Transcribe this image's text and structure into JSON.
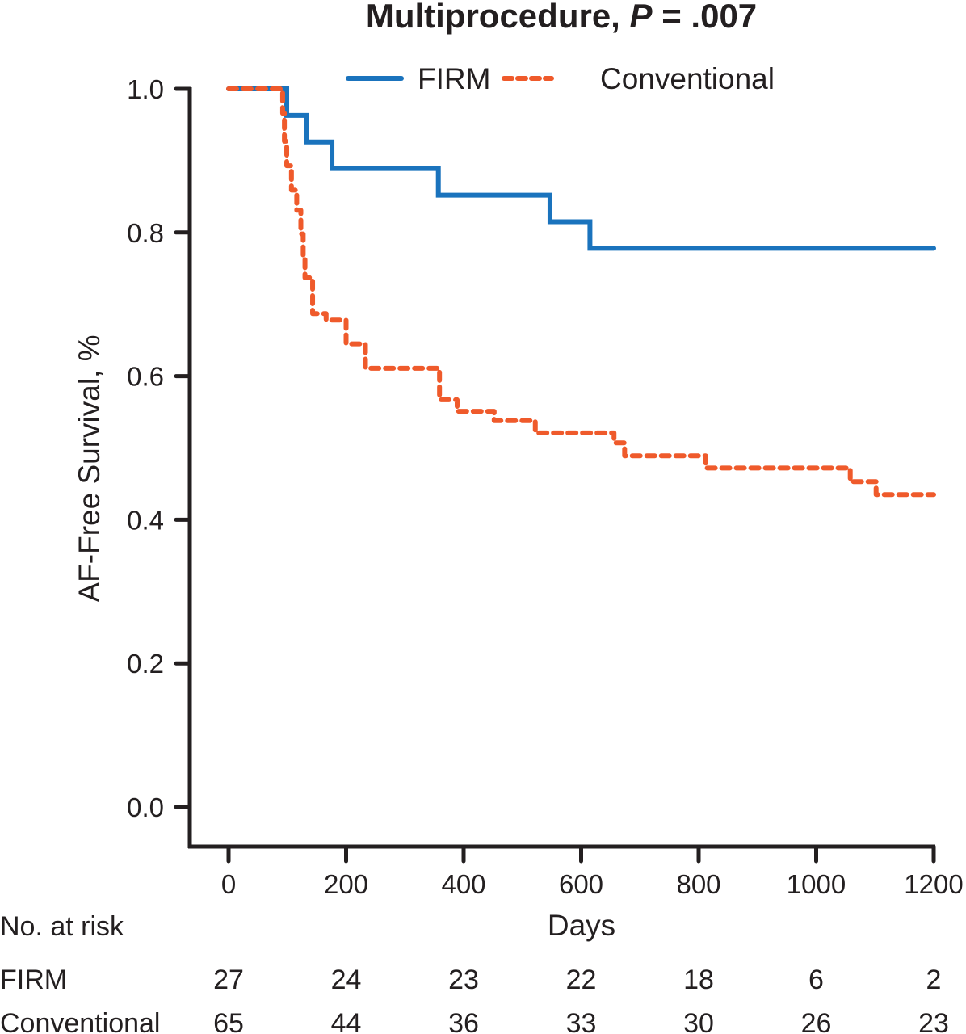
{
  "chart_data": {
    "type": "line",
    "subtype": "kaplan-meier-step",
    "title_main": "Multiprocedure, ",
    "title_p_symbol": "P",
    "title_p_value": " = .007",
    "xlabel": "Days",
    "ylabel": "AF-Free Survival, %",
    "xlim": [
      0,
      1200
    ],
    "ylim": [
      0.0,
      1.0
    ],
    "x_ticks": [
      0,
      200,
      400,
      600,
      800,
      1000,
      1200
    ],
    "x_tick_labels": [
      "0",
      "200",
      "400",
      "600",
      "800",
      "1000",
      "1200"
    ],
    "y_ticks": [
      0.0,
      0.2,
      0.4,
      0.6,
      0.8,
      1.0
    ],
    "y_tick_labels": [
      "0.0",
      "0.2",
      "0.4",
      "0.6",
      "0.8",
      "1.0"
    ],
    "grid": false,
    "legend_position": "top-center",
    "series": [
      {
        "name": "FIRM",
        "color": "#1a73bd",
        "style": "solid",
        "steps": [
          [
            0,
            1.0
          ],
          [
            99,
            0.963
          ],
          [
            133,
            0.926
          ],
          [
            176,
            0.889
          ],
          [
            357,
            0.852
          ],
          [
            547,
            0.815
          ],
          [
            615,
            0.778
          ]
        ],
        "end_x": 1200
      },
      {
        "name": "Conventional",
        "color": "#ef5a2b",
        "style": "dashed",
        "steps": [
          [
            0,
            1.0
          ],
          [
            92,
            0.966
          ],
          [
            95,
            0.927
          ],
          [
            99,
            0.893
          ],
          [
            107,
            0.859
          ],
          [
            116,
            0.831
          ],
          [
            123,
            0.798
          ],
          [
            127,
            0.764
          ],
          [
            130,
            0.737
          ],
          [
            143,
            0.687
          ],
          [
            166,
            0.678
          ],
          [
            200,
            0.645
          ],
          [
            233,
            0.611
          ],
          [
            359,
            0.567
          ],
          [
            389,
            0.551
          ],
          [
            452,
            0.538
          ],
          [
            522,
            0.521
          ],
          [
            656,
            0.507
          ],
          [
            674,
            0.489
          ],
          [
            812,
            0.472
          ],
          [
            1058,
            0.453
          ],
          [
            1102,
            0.435
          ]
        ],
        "end_x": 1200
      }
    ],
    "risk_table": {
      "header": "No. at risk",
      "rows": [
        {
          "label": "FIRM",
          "values": [
            "27",
            "24",
            "23",
            "22",
            "18",
            "6",
            "2"
          ]
        },
        {
          "label": "Conventional",
          "values": [
            "65",
            "44",
            "36",
            "33",
            "30",
            "26",
            "23"
          ]
        }
      ]
    }
  }
}
